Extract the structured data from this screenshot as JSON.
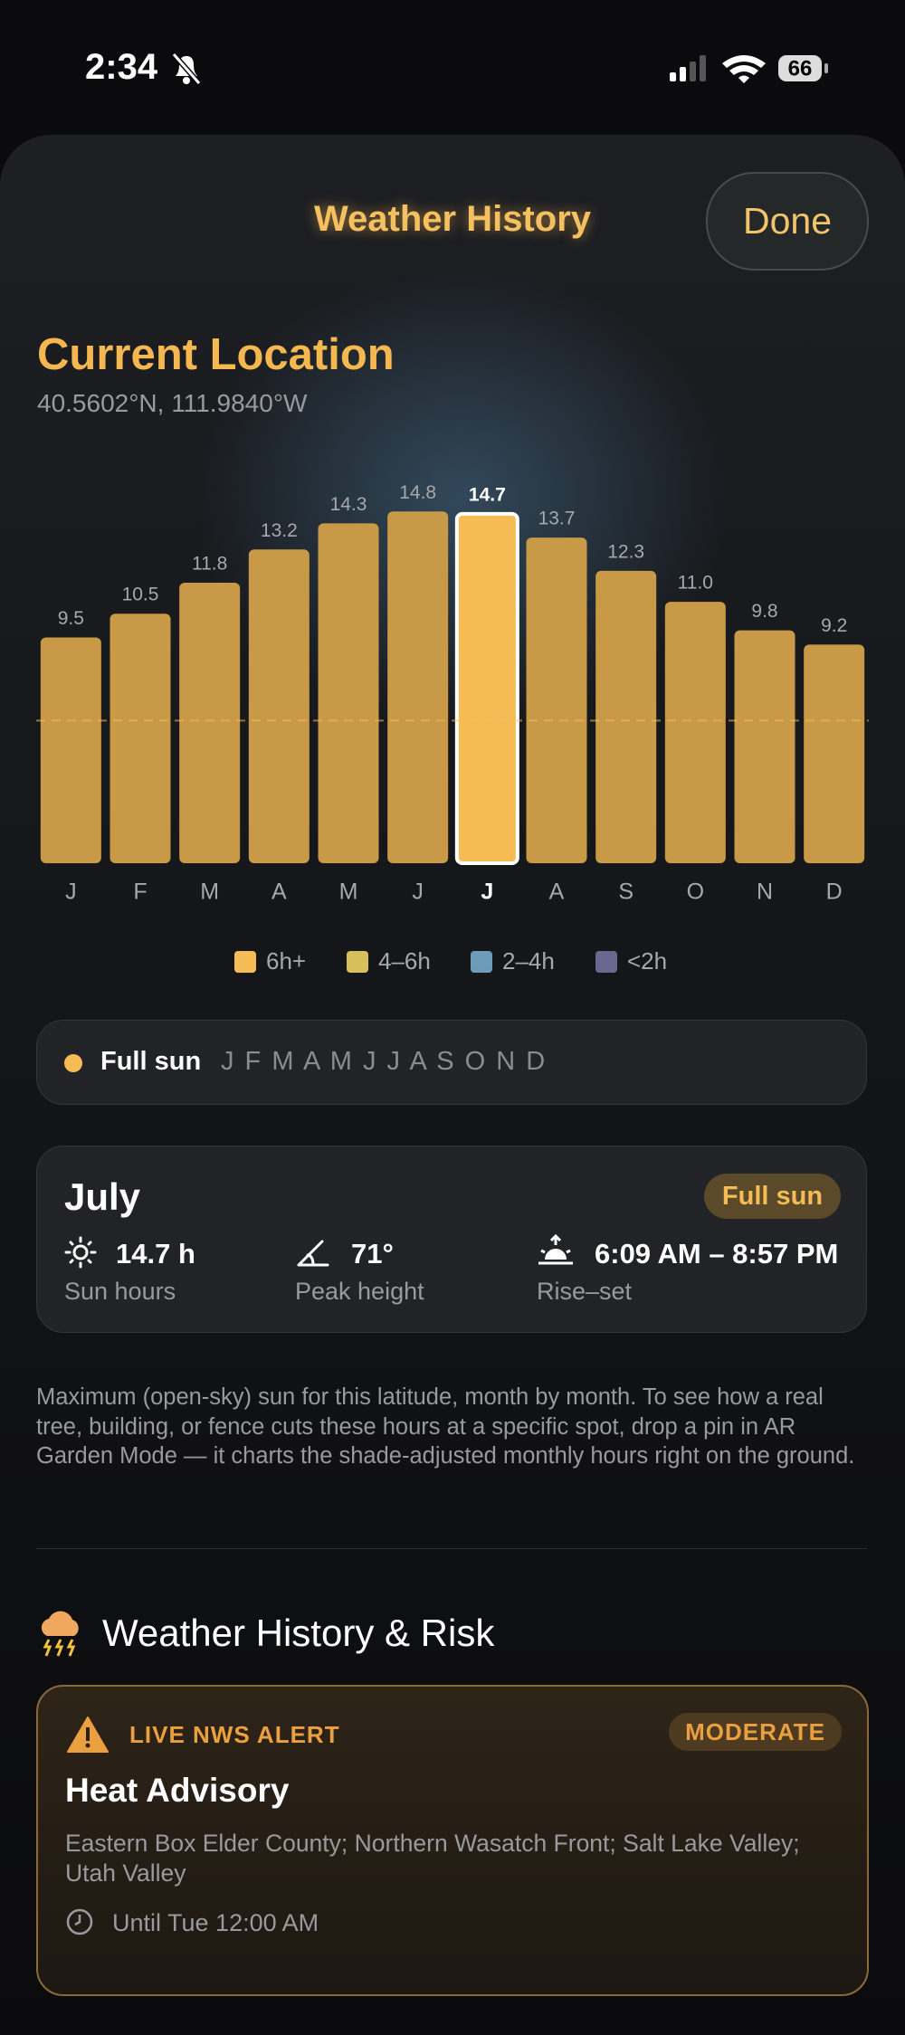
{
  "status_bar": {
    "time": "2:34",
    "battery": "66"
  },
  "header": {
    "title": "Weather History",
    "done": "Done"
  },
  "location": {
    "name": "Current Location",
    "coords": "40.5602°N, 111.9840°W"
  },
  "chart_data": {
    "type": "bar",
    "categories": [
      "J",
      "F",
      "M",
      "A",
      "M",
      "J",
      "J",
      "A",
      "S",
      "O",
      "N",
      "D"
    ],
    "values": [
      9.5,
      10.5,
      11.8,
      13.2,
      14.3,
      14.8,
      14.7,
      13.7,
      12.3,
      11.0,
      9.8,
      9.2
    ],
    "value_labels": [
      "9.5",
      "10.5",
      "11.8",
      "13.2",
      "14.3",
      "14.8",
      "14.7",
      "13.7",
      "12.3",
      "11.0",
      "9.8",
      "9.2"
    ],
    "color": "#c89a48",
    "highlight_color": "#f5bb55",
    "highlight_index": 6,
    "ylim": [
      0,
      15
    ],
    "reference_line": 6,
    "legend": [
      {
        "name": "6h+",
        "color": "#f5bb55"
      },
      {
        "name": "4–6h",
        "color": "#d8bf5e"
      },
      {
        "name": "2–4h",
        "color": "#6c9cb8"
      },
      {
        "name": "<2h",
        "color": "#6b6890"
      }
    ]
  },
  "full_sun": {
    "label": "Full sun",
    "months": "J F M A M J J A S O N D"
  },
  "month_detail": {
    "title": "July",
    "badge": "Full sun",
    "stats": [
      {
        "value": "14.7 h",
        "label": "Sun hours"
      },
      {
        "value": "71°",
        "label": "Peak height"
      },
      {
        "value": "6:09 AM – 8:57 PM",
        "label": "Rise–set"
      }
    ]
  },
  "note": "Maximum (open-sky) sun for this latitude, month by month. To see how a real tree, building, or fence cuts these hours at a specific spot, drop a pin in AR Garden Mode — it charts the shade-adjusted monthly hours right on the ground.",
  "risk": {
    "title": "Weather History & Risk",
    "alert": {
      "kicker": "LIVE NWS ALERT",
      "severity": "MODERATE",
      "title": "Heat Advisory",
      "areas": "Eastern Box Elder County; Northern Wasatch Front; Salt Lake Valley; Utah Valley",
      "until": "Until Tue 12:00 AM"
    }
  }
}
